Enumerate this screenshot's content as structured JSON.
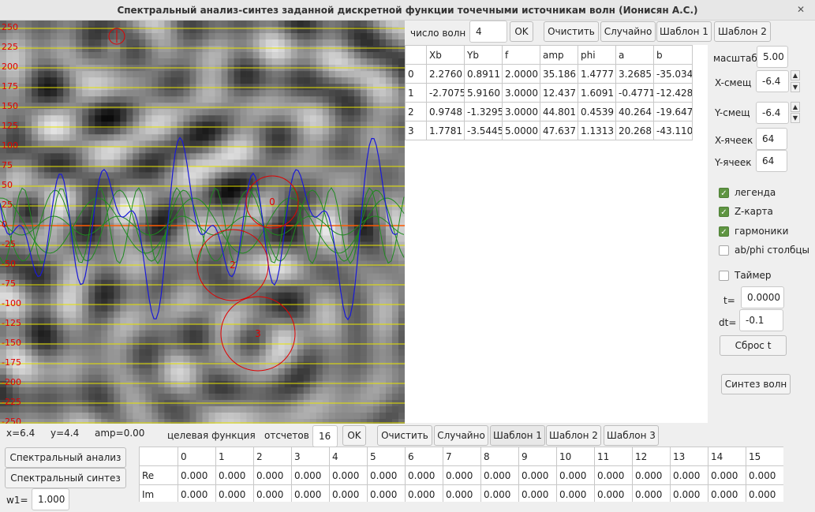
{
  "window": {
    "title": "Спектральный анализ-синтез заданной дискретной функции  точечными источникам волн (Ионисян А.С.)",
    "close_icon": "close-icon"
  },
  "plot": {
    "y_ticks": [
      "250",
      "225",
      "200",
      "175",
      "150",
      "125",
      "100",
      "75",
      "50",
      "25",
      "0",
      "-25",
      "-50",
      "-75",
      "-100",
      "-125",
      "-150",
      "-175",
      "-200",
      "-225",
      "-250"
    ],
    "source_labels": [
      "0",
      "1",
      "2",
      "3"
    ],
    "status": {
      "x": "x=6.4",
      "y": "y=4.4",
      "amp": "amp=0.00"
    }
  },
  "top": {
    "waves_label": "число волн",
    "waves_value": "4",
    "ok": "OK",
    "clear": "Очистить",
    "random": "Случайно",
    "template1": "Шаблон 1",
    "template2": "Шаблон 2"
  },
  "waves_table": {
    "headers": [
      "",
      "Xb",
      "Yb",
      "f",
      "amp",
      "phi",
      "a",
      "b"
    ],
    "rows": [
      [
        "0",
        "2.2760",
        "0.8911",
        "2.0000",
        "35.186",
        "1.4777",
        "3.2685",
        "-35.034"
      ],
      [
        "1",
        "-2.7075",
        "5.9160",
        "3.0000",
        "12.437",
        "1.6091",
        "-0.4771",
        "-12.428"
      ],
      [
        "2",
        "0.9748",
        "-1.3295",
        "3.0000",
        "44.801",
        "0.4539",
        "40.264",
        "-19.647"
      ],
      [
        "3",
        "1.7781",
        "-3.5445",
        "5.0000",
        "47.637",
        "1.1313",
        "20.268",
        "-43.110"
      ]
    ]
  },
  "settings": {
    "scale_label": "масштаб",
    "scale_value": "5.00",
    "xshift_label": "X-смещ",
    "xshift_value": "-6.4",
    "yshift_label": "Y-смещ",
    "yshift_value": "-6.4",
    "xcells_label": "X-ячеек",
    "xcells_value": "64",
    "ycells_label": "Y-ячеек",
    "ycells_value": "64",
    "legend_label": "легенда",
    "legend_checked": true,
    "zmap_label": "Z-карта",
    "zmap_checked": true,
    "harmonics_label": "гармоники",
    "harmonics_checked": true,
    "abphi_label": "ab/phi столбцы",
    "abphi_checked": false,
    "timer_label": "Таймер",
    "timer_checked": false,
    "t_label": "t=",
    "t_value": "0.0000",
    "dt_label": "dt=",
    "dt_value": "-0.1",
    "reset_t": "Сброс t",
    "synth_waves": "Синтез волн"
  },
  "target": {
    "label": "целевая функция",
    "samples_label": "отсчетов",
    "samples_value": "16",
    "ok": "OK",
    "clear": "Очистить",
    "random": "Случайно",
    "template1": "Шаблон 1",
    "template2": "Шаблон 2",
    "template3": "Шаблон 3"
  },
  "actions": {
    "spectral_analysis": "Спектральный анализ",
    "spectral_synthesis": "Спектральный синтез",
    "w1_label": "w1=",
    "w1_value": "1.000"
  },
  "samples_table": {
    "headers": [
      "",
      "0",
      "1",
      "2",
      "3",
      "4",
      "5",
      "6",
      "7",
      "8",
      "9",
      "10",
      "11",
      "12",
      "13",
      "14",
      "15"
    ],
    "rows": [
      [
        "Re",
        "0.000",
        "0.000",
        "0.000",
        "0.000",
        "0.000",
        "0.000",
        "0.000",
        "0.000",
        "0.000",
        "0.000",
        "0.000",
        "0.000",
        "0.000",
        "0.000",
        "0.000",
        "0.000"
      ],
      [
        "Im",
        "0.000",
        "0.000",
        "0.000",
        "0.000",
        "0.000",
        "0.000",
        "0.000",
        "0.000",
        "0.000",
        "0.000",
        "0.000",
        "0.000",
        "0.000",
        "0.000",
        "0.000",
        "0.000"
      ]
    ]
  },
  "colors": {
    "accent_red": "#e00000",
    "harmonic_green": "#1f8a1f",
    "sum_blue": "#1a1ad6",
    "gridline_yellow": "#e8e400",
    "check_green": "#5f9542"
  }
}
